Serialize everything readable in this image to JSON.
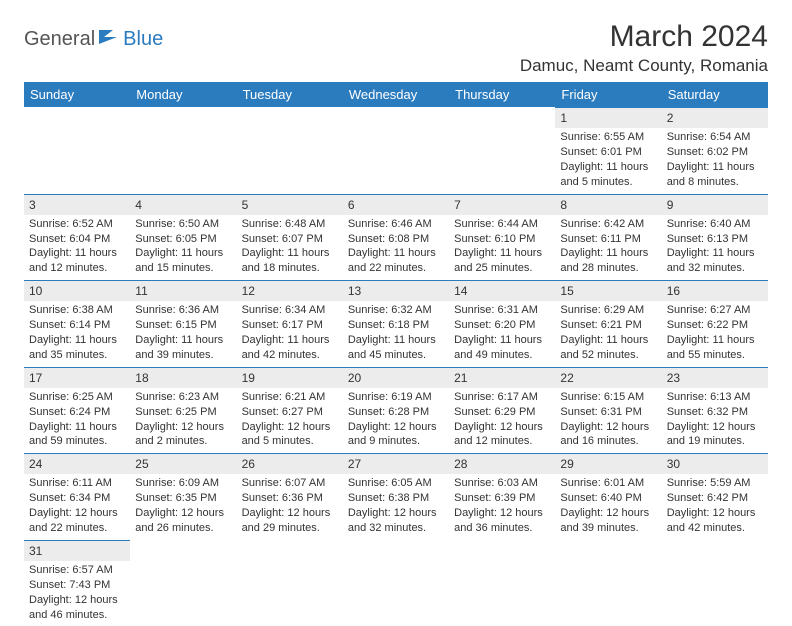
{
  "logo": {
    "part1": "General",
    "part2": "Blue"
  },
  "title": "March 2024",
  "location": "Damuc, Neamt County, Romania",
  "headers": [
    "Sunday",
    "Monday",
    "Tuesday",
    "Wednesday",
    "Thursday",
    "Friday",
    "Saturday"
  ],
  "colors": {
    "header_bg": "#2b7bbf",
    "header_fg": "#ffffff",
    "daynum_bg": "#ececec",
    "border": "#2b7bbf",
    "text": "#333333"
  },
  "weeks": [
    [
      null,
      null,
      null,
      null,
      null,
      {
        "n": "1",
        "sr": "Sunrise: 6:55 AM",
        "ss": "Sunset: 6:01 PM",
        "dl1": "Daylight: 11 hours",
        "dl2": "and 5 minutes."
      },
      {
        "n": "2",
        "sr": "Sunrise: 6:54 AM",
        "ss": "Sunset: 6:02 PM",
        "dl1": "Daylight: 11 hours",
        "dl2": "and 8 minutes."
      }
    ],
    [
      {
        "n": "3",
        "sr": "Sunrise: 6:52 AM",
        "ss": "Sunset: 6:04 PM",
        "dl1": "Daylight: 11 hours",
        "dl2": "and 12 minutes."
      },
      {
        "n": "4",
        "sr": "Sunrise: 6:50 AM",
        "ss": "Sunset: 6:05 PM",
        "dl1": "Daylight: 11 hours",
        "dl2": "and 15 minutes."
      },
      {
        "n": "5",
        "sr": "Sunrise: 6:48 AM",
        "ss": "Sunset: 6:07 PM",
        "dl1": "Daylight: 11 hours",
        "dl2": "and 18 minutes."
      },
      {
        "n": "6",
        "sr": "Sunrise: 6:46 AM",
        "ss": "Sunset: 6:08 PM",
        "dl1": "Daylight: 11 hours",
        "dl2": "and 22 minutes."
      },
      {
        "n": "7",
        "sr": "Sunrise: 6:44 AM",
        "ss": "Sunset: 6:10 PM",
        "dl1": "Daylight: 11 hours",
        "dl2": "and 25 minutes."
      },
      {
        "n": "8",
        "sr": "Sunrise: 6:42 AM",
        "ss": "Sunset: 6:11 PM",
        "dl1": "Daylight: 11 hours",
        "dl2": "and 28 minutes."
      },
      {
        "n": "9",
        "sr": "Sunrise: 6:40 AM",
        "ss": "Sunset: 6:13 PM",
        "dl1": "Daylight: 11 hours",
        "dl2": "and 32 minutes."
      }
    ],
    [
      {
        "n": "10",
        "sr": "Sunrise: 6:38 AM",
        "ss": "Sunset: 6:14 PM",
        "dl1": "Daylight: 11 hours",
        "dl2": "and 35 minutes."
      },
      {
        "n": "11",
        "sr": "Sunrise: 6:36 AM",
        "ss": "Sunset: 6:15 PM",
        "dl1": "Daylight: 11 hours",
        "dl2": "and 39 minutes."
      },
      {
        "n": "12",
        "sr": "Sunrise: 6:34 AM",
        "ss": "Sunset: 6:17 PM",
        "dl1": "Daylight: 11 hours",
        "dl2": "and 42 minutes."
      },
      {
        "n": "13",
        "sr": "Sunrise: 6:32 AM",
        "ss": "Sunset: 6:18 PM",
        "dl1": "Daylight: 11 hours",
        "dl2": "and 45 minutes."
      },
      {
        "n": "14",
        "sr": "Sunrise: 6:31 AM",
        "ss": "Sunset: 6:20 PM",
        "dl1": "Daylight: 11 hours",
        "dl2": "and 49 minutes."
      },
      {
        "n": "15",
        "sr": "Sunrise: 6:29 AM",
        "ss": "Sunset: 6:21 PM",
        "dl1": "Daylight: 11 hours",
        "dl2": "and 52 minutes."
      },
      {
        "n": "16",
        "sr": "Sunrise: 6:27 AM",
        "ss": "Sunset: 6:22 PM",
        "dl1": "Daylight: 11 hours",
        "dl2": "and 55 minutes."
      }
    ],
    [
      {
        "n": "17",
        "sr": "Sunrise: 6:25 AM",
        "ss": "Sunset: 6:24 PM",
        "dl1": "Daylight: 11 hours",
        "dl2": "and 59 minutes."
      },
      {
        "n": "18",
        "sr": "Sunrise: 6:23 AM",
        "ss": "Sunset: 6:25 PM",
        "dl1": "Daylight: 12 hours",
        "dl2": "and 2 minutes."
      },
      {
        "n": "19",
        "sr": "Sunrise: 6:21 AM",
        "ss": "Sunset: 6:27 PM",
        "dl1": "Daylight: 12 hours",
        "dl2": "and 5 minutes."
      },
      {
        "n": "20",
        "sr": "Sunrise: 6:19 AM",
        "ss": "Sunset: 6:28 PM",
        "dl1": "Daylight: 12 hours",
        "dl2": "and 9 minutes."
      },
      {
        "n": "21",
        "sr": "Sunrise: 6:17 AM",
        "ss": "Sunset: 6:29 PM",
        "dl1": "Daylight: 12 hours",
        "dl2": "and 12 minutes."
      },
      {
        "n": "22",
        "sr": "Sunrise: 6:15 AM",
        "ss": "Sunset: 6:31 PM",
        "dl1": "Daylight: 12 hours",
        "dl2": "and 16 minutes."
      },
      {
        "n": "23",
        "sr": "Sunrise: 6:13 AM",
        "ss": "Sunset: 6:32 PM",
        "dl1": "Daylight: 12 hours",
        "dl2": "and 19 minutes."
      }
    ],
    [
      {
        "n": "24",
        "sr": "Sunrise: 6:11 AM",
        "ss": "Sunset: 6:34 PM",
        "dl1": "Daylight: 12 hours",
        "dl2": "and 22 minutes."
      },
      {
        "n": "25",
        "sr": "Sunrise: 6:09 AM",
        "ss": "Sunset: 6:35 PM",
        "dl1": "Daylight: 12 hours",
        "dl2": "and 26 minutes."
      },
      {
        "n": "26",
        "sr": "Sunrise: 6:07 AM",
        "ss": "Sunset: 6:36 PM",
        "dl1": "Daylight: 12 hours",
        "dl2": "and 29 minutes."
      },
      {
        "n": "27",
        "sr": "Sunrise: 6:05 AM",
        "ss": "Sunset: 6:38 PM",
        "dl1": "Daylight: 12 hours",
        "dl2": "and 32 minutes."
      },
      {
        "n": "28",
        "sr": "Sunrise: 6:03 AM",
        "ss": "Sunset: 6:39 PM",
        "dl1": "Daylight: 12 hours",
        "dl2": "and 36 minutes."
      },
      {
        "n": "29",
        "sr": "Sunrise: 6:01 AM",
        "ss": "Sunset: 6:40 PM",
        "dl1": "Daylight: 12 hours",
        "dl2": "and 39 minutes."
      },
      {
        "n": "30",
        "sr": "Sunrise: 5:59 AM",
        "ss": "Sunset: 6:42 PM",
        "dl1": "Daylight: 12 hours",
        "dl2": "and 42 minutes."
      }
    ],
    [
      {
        "n": "31",
        "sr": "Sunrise: 6:57 AM",
        "ss": "Sunset: 7:43 PM",
        "dl1": "Daylight: 12 hours",
        "dl2": "and 46 minutes."
      },
      null,
      null,
      null,
      null,
      null,
      null
    ]
  ]
}
